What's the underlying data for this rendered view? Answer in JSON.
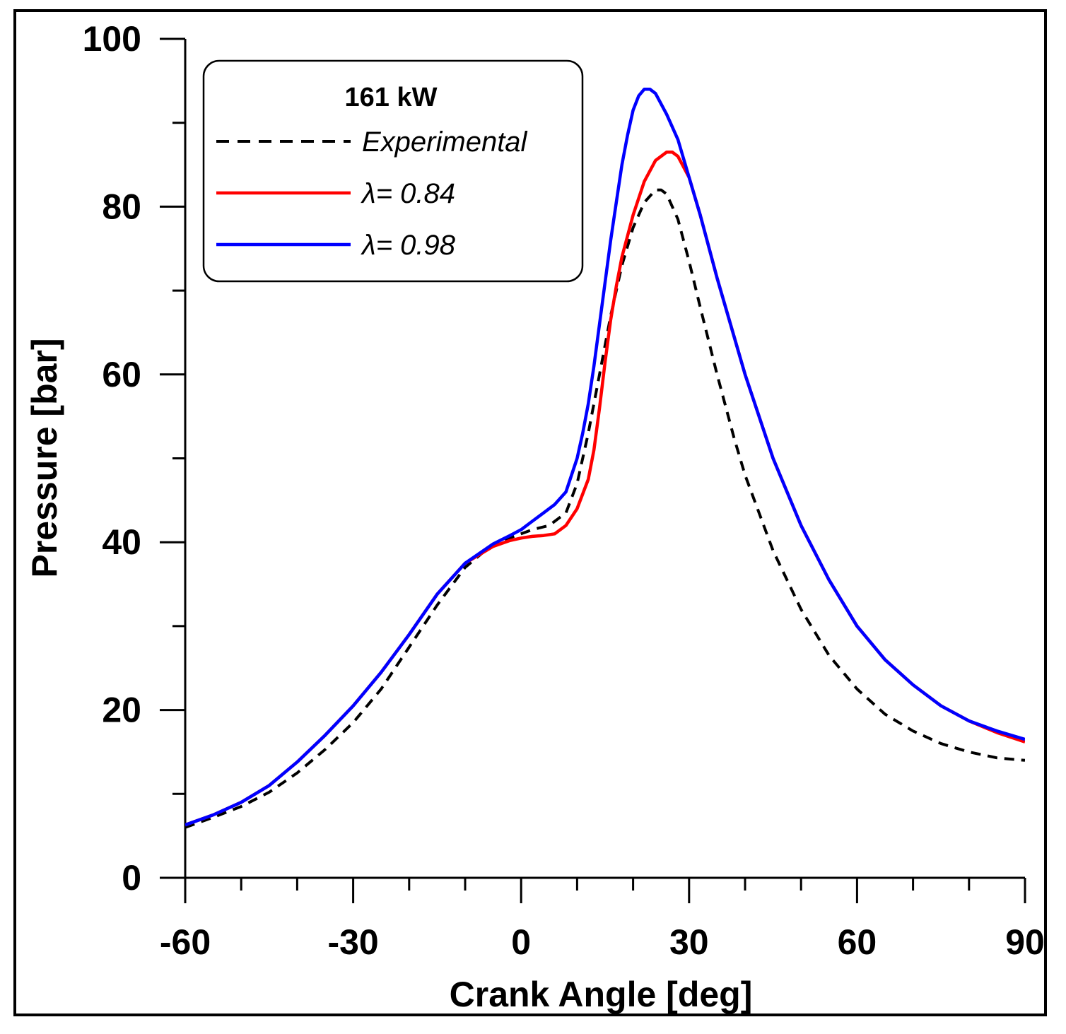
{
  "chart_data": {
    "type": "line",
    "xlabel": "Crank Angle [deg]",
    "ylabel": "Pressure [bar]",
    "xlim": [
      -60,
      90
    ],
    "ylim": [
      0,
      100
    ],
    "x_ticks": [
      -60,
      -30,
      0,
      30,
      60,
      90
    ],
    "y_ticks": [
      0,
      20,
      40,
      60,
      80,
      100
    ],
    "x_minor_step": 10,
    "y_minor_step": 10,
    "legend": {
      "title": "161 kW",
      "placement": "top-left"
    },
    "series": [
      {
        "name": "Experimental",
        "label": "Experimental",
        "color": "#000000",
        "style": "dashed",
        "x": [
          -60,
          -55,
          -50,
          -45,
          -40,
          -35,
          -30,
          -25,
          -20,
          -15,
          -10,
          -5,
          0,
          2,
          5,
          8,
          10,
          12,
          14,
          16,
          18,
          20,
          22,
          24,
          25,
          26,
          28,
          30,
          32,
          35,
          38,
          40,
          45,
          50,
          55,
          60,
          65,
          70,
          75,
          80,
          85,
          90
        ],
        "y": [
          6.0,
          7.2,
          8.5,
          10.2,
          12.5,
          15.3,
          18.5,
          22.5,
          27.5,
          32.5,
          37.0,
          39.8,
          41.0,
          41.5,
          42.0,
          43.5,
          47.0,
          53.0,
          60.0,
          67.0,
          73.0,
          77.5,
          80.5,
          82.0,
          82.0,
          81.5,
          78.5,
          73.5,
          68.0,
          60.0,
          52.5,
          48.0,
          39.0,
          32.0,
          26.5,
          22.5,
          19.5,
          17.5,
          16.0,
          15.0,
          14.3,
          14.0
        ]
      },
      {
        "name": "lambda-0.84",
        "label": "λ= 0.84",
        "color": "#ff0000",
        "style": "solid",
        "x": [
          -60,
          -55,
          -50,
          -45,
          -40,
          -35,
          -30,
          -25,
          -20,
          -15,
          -10,
          -5,
          -2,
          0,
          2,
          4,
          6,
          8,
          10,
          12,
          13,
          14,
          15,
          16,
          17,
          18,
          20,
          22,
          24,
          26,
          27,
          28,
          30,
          32,
          35,
          40,
          45,
          50,
          55,
          60,
          65,
          70,
          75,
          80,
          85,
          90
        ],
        "y": [
          6.3,
          7.5,
          9.0,
          11.0,
          13.8,
          17.0,
          20.5,
          24.5,
          29.0,
          33.8,
          37.5,
          39.5,
          40.2,
          40.5,
          40.7,
          40.8,
          41.0,
          42.0,
          44.0,
          47.5,
          51.0,
          56.0,
          61.5,
          66.5,
          70.5,
          74.0,
          79.0,
          83.0,
          85.5,
          86.5,
          86.5,
          86.0,
          83.5,
          79.0,
          71.5,
          60.0,
          50.0,
          42.0,
          35.5,
          30.0,
          26.0,
          23.0,
          20.5,
          18.7,
          17.3,
          16.2
        ]
      },
      {
        "name": "lambda-0.98",
        "label": "λ= 0.98",
        "color": "#0000ff",
        "style": "solid",
        "x": [
          -60,
          -55,
          -50,
          -45,
          -40,
          -35,
          -30,
          -25,
          -20,
          -15,
          -10,
          -5,
          -2,
          0,
          2,
          4,
          6,
          8,
          10,
          11,
          12,
          13,
          14,
          15,
          16,
          17,
          18,
          19,
          20,
          21,
          22,
          23,
          24,
          26,
          28,
          30,
          32,
          35,
          40,
          45,
          50,
          55,
          60,
          65,
          70,
          75,
          80,
          85,
          90
        ],
        "y": [
          6.3,
          7.5,
          9.0,
          11.0,
          13.8,
          17.0,
          20.5,
          24.5,
          29.0,
          33.8,
          37.5,
          39.8,
          40.8,
          41.5,
          42.5,
          43.5,
          44.5,
          46.0,
          50.0,
          53.0,
          56.5,
          61.0,
          66.0,
          71.0,
          76.0,
          80.5,
          85.0,
          88.5,
          91.5,
          93.2,
          94.0,
          94.0,
          93.5,
          91.0,
          88.0,
          83.5,
          79.0,
          71.5,
          60.0,
          50.0,
          42.0,
          35.5,
          30.0,
          26.0,
          23.0,
          20.5,
          18.7,
          17.5,
          16.5
        ]
      }
    ]
  }
}
